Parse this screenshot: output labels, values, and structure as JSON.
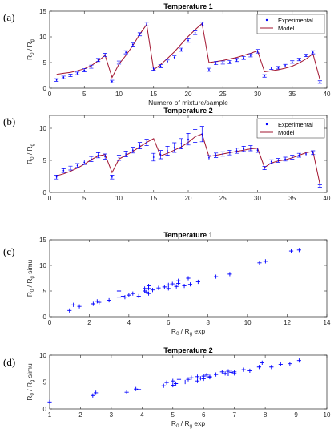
{
  "colors": {
    "experimental": "#0000ff",
    "model": "#a2142f",
    "axis": "#262626"
  },
  "chart_data": [
    {
      "type": "line",
      "panel_label": "(a)",
      "title": "Temperature 1",
      "xlabel": "Numero of mixture/sample",
      "ylabel_main": "R",
      "ylabel_sub": "0",
      "ylabel_mid": " / R",
      "ylabel_sub2": "g",
      "ylabel_tail": "",
      "xlim": [
        0,
        40
      ],
      "ylim": [
        0,
        15
      ],
      "xticks": [
        0,
        5,
        10,
        15,
        20,
        25,
        30,
        35,
        40
      ],
      "yticks": [
        0,
        5,
        10,
        15
      ],
      "legend": {
        "position": "top-right",
        "entries": [
          "Experimental",
          "Model"
        ]
      },
      "x": [
        1,
        2,
        3,
        4,
        5,
        6,
        7,
        8,
        9,
        10,
        11,
        12,
        13,
        14,
        15,
        16,
        17,
        18,
        19,
        20,
        21,
        22,
        23,
        24,
        25,
        26,
        27,
        28,
        29,
        30,
        31,
        32,
        33,
        34,
        35,
        36,
        37,
        38,
        39
      ],
      "series": [
        {
          "name": "Experimental",
          "style": "errorbar",
          "values": [
            1.6,
            2.1,
            2.5,
            2.9,
            3.5,
            4.2,
            5.5,
            6.5,
            1.3,
            5.0,
            7.0,
            8.5,
            10.5,
            12.5,
            3.8,
            4.3,
            5.2,
            6.0,
            7.5,
            9.3,
            10.8,
            12.5,
            3.6,
            4.9,
            5.0,
            5.1,
            5.5,
            5.9,
            6.4,
            7.2,
            2.4,
            3.9,
            4.0,
            4.4,
            5.1,
            5.6,
            6.4,
            7.0,
            1.2
          ],
          "errors": [
            0.25,
            0.25,
            0.25,
            0.25,
            0.3,
            0.3,
            0.3,
            0.3,
            0.25,
            0.3,
            0.3,
            0.3,
            0.3,
            0.35,
            0.3,
            0.3,
            0.3,
            0.3,
            0.3,
            0.35,
            0.35,
            0.35,
            0.3,
            0.3,
            0.3,
            0.3,
            0.3,
            0.3,
            0.3,
            0.35,
            0.25,
            0.25,
            0.25,
            0.25,
            0.25,
            0.25,
            0.25,
            0.3,
            0.25
          ]
        },
        {
          "name": "Model",
          "style": "line",
          "values": [
            2.7,
            2.9,
            3.1,
            3.4,
            3.8,
            4.4,
            5.3,
            6.4,
            2.1,
            4.7,
            6.4,
            8.3,
            10.5,
            12.4,
            3.6,
            4.6,
            5.8,
            7.1,
            8.6,
            10.1,
            11.4,
            12.6,
            5.0,
            5.2,
            5.4,
            5.7,
            6.0,
            6.4,
            6.8,
            7.3,
            3.2,
            3.4,
            3.6,
            3.9,
            4.3,
            4.9,
            5.7,
            6.7,
            1.7
          ]
        }
      ]
    },
    {
      "type": "line",
      "panel_label": "(b)",
      "title": "Temperature 2",
      "xlabel": "",
      "ylabel_main": "R",
      "ylabel_sub": "0",
      "ylabel_mid": " / R",
      "ylabel_sub2": "g",
      "ylabel_tail": "",
      "xlim": [
        0,
        40
      ],
      "ylim": [
        0,
        12
      ],
      "xticks": [
        0,
        5,
        10,
        15,
        20,
        25,
        30,
        35,
        40
      ],
      "yticks": [
        0,
        5,
        10
      ],
      "legend": {
        "position": "top-right",
        "entries": [
          "Experimental",
          "Model"
        ]
      },
      "x": [
        1,
        2,
        3,
        4,
        5,
        6,
        7,
        8,
        9,
        10,
        11,
        12,
        13,
        14,
        15,
        16,
        17,
        18,
        19,
        20,
        21,
        22,
        23,
        24,
        25,
        26,
        27,
        28,
        29,
        30,
        31,
        32,
        33,
        34,
        35,
        36,
        37,
        38,
        39
      ],
      "series": [
        {
          "name": "Experimental",
          "style": "errorbar",
          "values": [
            2.4,
            3.4,
            3.8,
            4.2,
            4.7,
            5.2,
            5.8,
            5.6,
            2.4,
            5.4,
            6.0,
            6.6,
            7.3,
            7.8,
            5.5,
            5.9,
            6.5,
            7.0,
            7.6,
            8.3,
            8.8,
            9.1,
            5.4,
            5.8,
            6.0,
            6.2,
            6.5,
            6.8,
            6.9,
            6.6,
            3.8,
            4.8,
            5.0,
            5.2,
            5.5,
            5.8,
            6.0,
            6.2,
            1.0
          ],
          "errors": [
            0.3,
            0.3,
            0.3,
            0.3,
            0.35,
            0.4,
            0.4,
            0.4,
            0.3,
            0.4,
            0.45,
            0.45,
            0.5,
            0.5,
            0.6,
            0.65,
            0.7,
            0.75,
            0.8,
            0.9,
            1.0,
            1.2,
            0.35,
            0.35,
            0.35,
            0.35,
            0.4,
            0.4,
            0.4,
            0.35,
            0.25,
            0.3,
            0.3,
            0.3,
            0.3,
            0.3,
            0.3,
            0.3,
            0.2
          ]
        },
        {
          "name": "Model",
          "style": "line",
          "values": [
            2.6,
            2.9,
            3.3,
            3.8,
            4.4,
            5.1,
            5.7,
            5.9,
            3.1,
            5.2,
            5.8,
            6.4,
            7.1,
            7.8,
            8.4,
            5.7,
            6.1,
            6.6,
            7.1,
            7.8,
            8.7,
            9.1,
            5.6,
            5.8,
            6.0,
            6.2,
            6.4,
            6.6,
            6.8,
            6.9,
            3.9,
            4.6,
            4.9,
            5.1,
            5.4,
            5.8,
            6.2,
            6.4,
            1.3
          ]
        }
      ]
    },
    {
      "type": "scatter",
      "panel_label": "(c)",
      "title": "Temperature 1",
      "xlabel_main": "R",
      "xlabel_sub": "0",
      "xlabel_mid": " / R",
      "xlabel_sub2": "g",
      "xlabel_tail": " exp",
      "ylabel_main": "R",
      "ylabel_sub": "0",
      "ylabel_mid": " / R",
      "ylabel_sub2": "g",
      "ylabel_tail": " simu",
      "xlim": [
        0,
        14
      ],
      "ylim": [
        0,
        15
      ],
      "xticks": [
        0,
        2,
        4,
        6,
        8,
        10,
        12,
        14
      ],
      "yticks": [
        0,
        5,
        10,
        15
      ],
      "series": [
        {
          "name": "",
          "points": [
            [
              1.0,
              1.2
            ],
            [
              1.2,
              2.3
            ],
            [
              1.5,
              2.0
            ],
            [
              2.2,
              2.5
            ],
            [
              2.4,
              3.0
            ],
            [
              2.5,
              2.8
            ],
            [
              3.0,
              3.2
            ],
            [
              3.5,
              3.8
            ],
            [
              3.5,
              5.0
            ],
            [
              3.7,
              4.0
            ],
            [
              3.8,
              3.8
            ],
            [
              4.0,
              4.2
            ],
            [
              4.2,
              4.5
            ],
            [
              4.5,
              4.0
            ],
            [
              4.8,
              5.5
            ],
            [
              4.8,
              5.0
            ],
            [
              4.9,
              4.8
            ],
            [
              5.0,
              4.5
            ],
            [
              5.0,
              5.5
            ],
            [
              5.0,
              6.0
            ],
            [
              5.2,
              5.2
            ],
            [
              5.5,
              5.6
            ],
            [
              5.8,
              5.8
            ],
            [
              6.0,
              5.5
            ],
            [
              6.0,
              6.2
            ],
            [
              6.2,
              6.4
            ],
            [
              6.4,
              5.9
            ],
            [
              6.5,
              6.5
            ],
            [
              6.5,
              7.0
            ],
            [
              6.8,
              6.0
            ],
            [
              7.0,
              7.5
            ],
            [
              7.1,
              6.3
            ],
            [
              7.5,
              6.8
            ],
            [
              8.4,
              7.8
            ],
            [
              9.1,
              8.3
            ],
            [
              10.6,
              10.5
            ],
            [
              10.9,
              10.8
            ],
            [
              12.2,
              12.8
            ],
            [
              12.6,
              13.0
            ]
          ]
        }
      ]
    },
    {
      "type": "scatter",
      "panel_label": "(d)",
      "title": "Temperature 2",
      "xlabel_main": "R",
      "xlabel_sub": "0",
      "xlabel_mid": " / R",
      "xlabel_sub2": "g",
      "xlabel_tail": " exp",
      "ylabel_main": "R",
      "ylabel_sub": "0",
      "ylabel_mid": " / R",
      "ylabel_sub2": "g",
      "ylabel_tail": " simu",
      "xlim": [
        1,
        10
      ],
      "ylim": [
        0,
        10
      ],
      "xticks": [
        1,
        2,
        3,
        4,
        5,
        6,
        7,
        8,
        9,
        10
      ],
      "yticks": [
        0,
        5,
        10
      ],
      "series": [
        {
          "name": "",
          "points": [
            [
              1.0,
              1.3
            ],
            [
              2.4,
              2.5
            ],
            [
              2.5,
              3.0
            ],
            [
              3.5,
              3.1
            ],
            [
              3.8,
              3.7
            ],
            [
              3.9,
              3.6
            ],
            [
              4.7,
              4.3
            ],
            [
              4.8,
              4.9
            ],
            [
              5.0,
              4.4
            ],
            [
              5.0,
              5.2
            ],
            [
              5.1,
              4.7
            ],
            [
              5.2,
              5.5
            ],
            [
              5.4,
              5.0
            ],
            [
              5.5,
              5.5
            ],
            [
              5.6,
              5.8
            ],
            [
              5.8,
              5.2
            ],
            [
              5.8,
              6.0
            ],
            [
              5.9,
              5.7
            ],
            [
              6.0,
              5.6
            ],
            [
              6.0,
              6.1
            ],
            [
              6.1,
              6.3
            ],
            [
              6.2,
              6.0
            ],
            [
              6.2,
              5.9
            ],
            [
              6.4,
              6.4
            ],
            [
              6.6,
              6.9
            ],
            [
              6.7,
              6.6
            ],
            [
              6.8,
              6.5
            ],
            [
              6.8,
              7.0
            ],
            [
              6.9,
              6.8
            ],
            [
              7.0,
              6.6
            ],
            [
              7.0,
              6.9
            ],
            [
              7.3,
              7.3
            ],
            [
              7.5,
              7.1
            ],
            [
              7.8,
              7.8
            ],
            [
              7.9,
              8.6
            ],
            [
              8.2,
              7.8
            ],
            [
              8.5,
              8.3
            ],
            [
              8.8,
              8.4
            ],
            [
              9.1,
              9.0
            ]
          ]
        }
      ]
    }
  ]
}
